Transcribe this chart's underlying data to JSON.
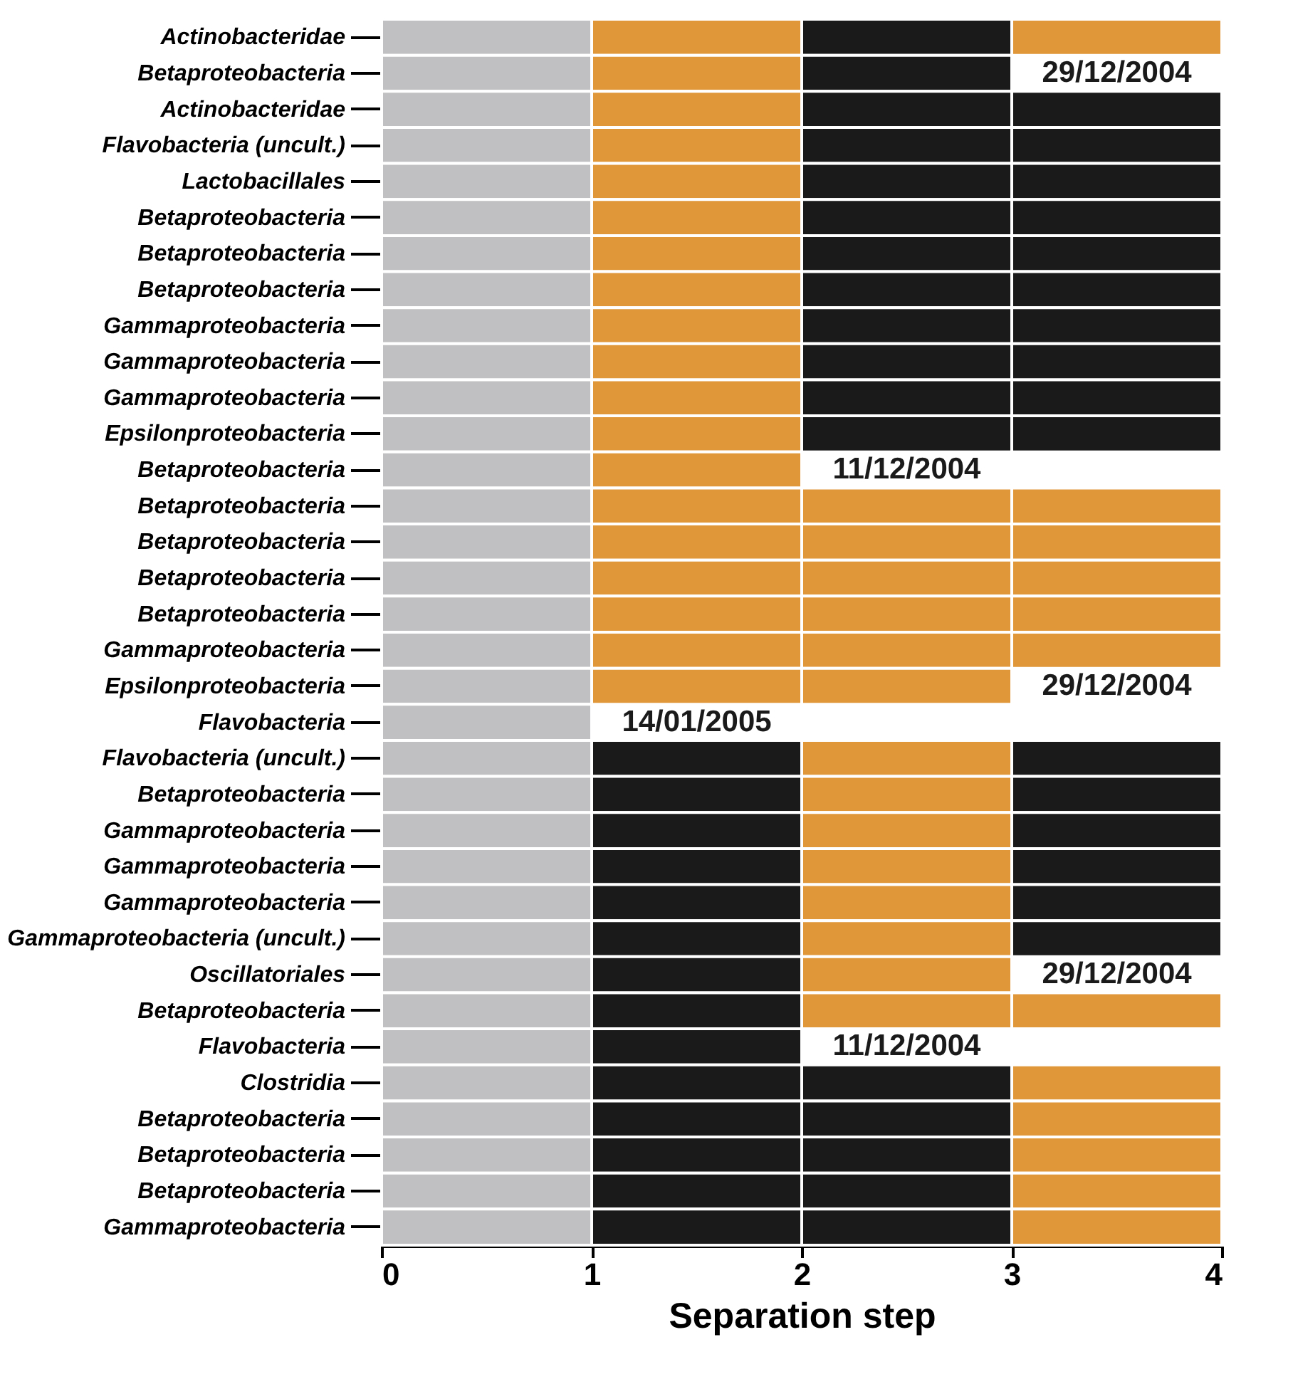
{
  "chart_data": {
    "type": "bar",
    "orientation": "horizontal",
    "stacked": true,
    "xlabel": "Separation step",
    "xlim": [
      0,
      4
    ],
    "xticks": [
      0,
      1,
      2,
      3,
      4
    ],
    "grid": false,
    "categories": [
      "Actinobacteridae",
      "Betaproteobacteria",
      "Actinobacteridae",
      "Flavobacteria (uncult.)",
      "Lactobacillales",
      "Betaproteobacteria",
      "Betaproteobacteria",
      "Betaproteobacteria",
      "Gammaproteobacteria",
      "Gammaproteobacteria",
      "Gammaproteobacteria",
      "Epsilonproteobacteria",
      "Betaproteobacteria",
      "Betaproteobacteria",
      "Betaproteobacteria",
      "Betaproteobacteria",
      "Betaproteobacteria",
      "Gammaproteobacteria",
      "Epsilonproteobacteria",
      "Flavobacteria",
      "Flavobacteria (uncult.)",
      "Betaproteobacteria",
      "Gammaproteobacteria",
      "Gammaproteobacteria",
      "Gammaproteobacteria",
      "Gammaproteobacteria (uncult.)",
      "Oscillatoriales",
      "Betaproteobacteria",
      "Flavobacteria",
      "Clostridia",
      "Betaproteobacteria",
      "Betaproteobacteria",
      "Betaproteobacteria",
      "Gammaproteobacteria"
    ],
    "series": [
      {
        "color": "#c0bfc1",
        "values": [
          1,
          1,
          1,
          1,
          1,
          1,
          1,
          1,
          1,
          1,
          1,
          1,
          1,
          1,
          1,
          1,
          1,
          1,
          1,
          1,
          1,
          1,
          1,
          1,
          1,
          1,
          1,
          1,
          1,
          1,
          1,
          1,
          1,
          1
        ]
      },
      {
        "values": [
          1,
          1,
          1,
          1,
          1,
          1,
          1,
          1,
          1,
          1,
          1,
          1,
          1,
          1,
          1,
          1,
          1,
          1,
          1,
          null,
          1,
          1,
          1,
          1,
          1,
          1,
          1,
          1,
          1,
          1,
          1,
          1,
          1,
          1
        ],
        "colors": [
          "#e0973a",
          "#e0973a",
          "#e0973a",
          "#e0973a",
          "#e0973a",
          "#e0973a",
          "#e0973a",
          "#e0973a",
          "#e0973a",
          "#e0973a",
          "#e0973a",
          "#e0973a",
          "#e0973a",
          "#e0973a",
          "#e0973a",
          "#e0973a",
          "#e0973a",
          "#e0973a",
          "#e0973a",
          null,
          "#1a1a1a",
          "#1a1a1a",
          "#1a1a1a",
          "#1a1a1a",
          "#1a1a1a",
          "#1a1a1a",
          "#1a1a1a",
          "#1a1a1a",
          "#1a1a1a",
          "#1a1a1a",
          "#1a1a1a",
          "#1a1a1a",
          "#1a1a1a",
          "#1a1a1a"
        ]
      },
      {
        "values": [
          1,
          1,
          1,
          1,
          1,
          1,
          1,
          1,
          1,
          1,
          1,
          1,
          null,
          1,
          1,
          1,
          1,
          1,
          1,
          null,
          1,
          1,
          1,
          1,
          1,
          1,
          1,
          1,
          null,
          1,
          1,
          1,
          1,
          1
        ],
        "colors": [
          "#1a1a1a",
          "#1a1a1a",
          "#1a1a1a",
          "#1a1a1a",
          "#1a1a1a",
          "#1a1a1a",
          "#1a1a1a",
          "#1a1a1a",
          "#1a1a1a",
          "#1a1a1a",
          "#1a1a1a",
          "#1a1a1a",
          null,
          "#e0973a",
          "#e0973a",
          "#e0973a",
          "#e0973a",
          "#e0973a",
          "#e0973a",
          null,
          "#e0973a",
          "#e0973a",
          "#e0973a",
          "#e0973a",
          "#e0973a",
          "#e0973a",
          "#e0973a",
          "#e0973a",
          null,
          "#1a1a1a",
          "#1a1a1a",
          "#1a1a1a",
          "#1a1a1a",
          "#1a1a1a"
        ]
      },
      {
        "values": [
          1,
          null,
          1,
          1,
          1,
          1,
          1,
          1,
          1,
          1,
          1,
          1,
          null,
          1,
          1,
          1,
          1,
          1,
          null,
          null,
          1,
          1,
          1,
          1,
          1,
          1,
          null,
          1,
          null,
          1,
          1,
          1,
          1,
          1
        ],
        "colors": [
          "#e0973a",
          null,
          "#1a1a1a",
          "#1a1a1a",
          "#1a1a1a",
          "#1a1a1a",
          "#1a1a1a",
          "#1a1a1a",
          "#1a1a1a",
          "#1a1a1a",
          "#1a1a1a",
          "#1a1a1a",
          null,
          "#e0973a",
          "#e0973a",
          "#e0973a",
          "#e0973a",
          "#e0973a",
          null,
          null,
          "#1a1a1a",
          "#1a1a1a",
          "#1a1a1a",
          "#1a1a1a",
          "#1a1a1a",
          "#1a1a1a",
          null,
          "#e0973a",
          null,
          "#e0973a",
          "#e0973a",
          "#e0973a",
          "#e0973a",
          "#e0973a"
        ]
      }
    ],
    "annotations": [
      "29/12/2004",
      "11/12/2004",
      "29/12/2004",
      "14/01/2005",
      "29/12/2004",
      "11/12/2004"
    ]
  }
}
